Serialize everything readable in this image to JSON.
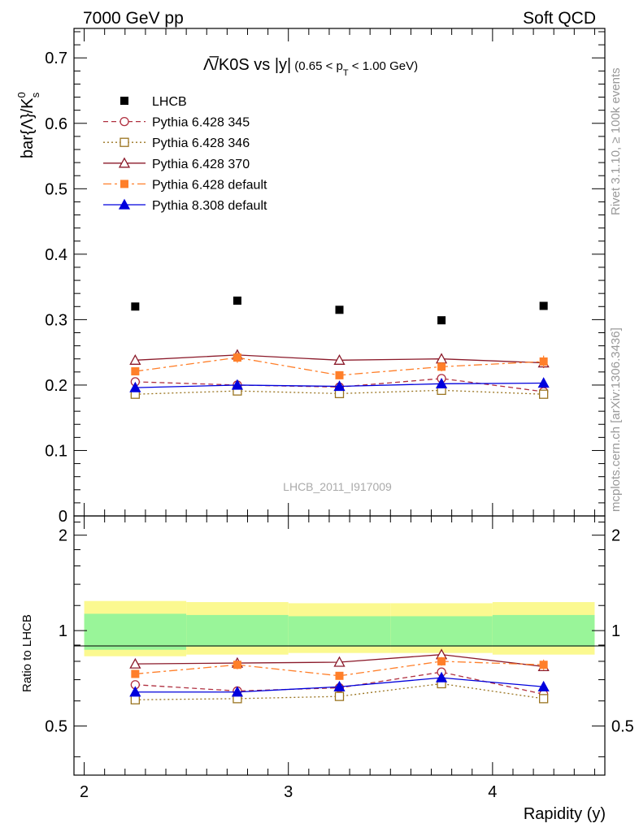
{
  "header": {
    "left": "7000 GeV pp",
    "right": "Soft QCD"
  },
  "side_labels": {
    "rivet": "Rivet 3.1.10, ≥ 100k events",
    "mcplots": "mcplots.cern.ch [arXiv:1306.3436]"
  },
  "watermark": "LHCB_2011_I917009",
  "title": {
    "main": "Λ̅/K0S vs |y|",
    "sub_pre": "(0.65 < p",
    "sub_T": "T",
    "sub_post": " < 1.00 GeV)"
  },
  "ylabel_main": {
    "pre": "bar{Λ}/K",
    "sup": "0",
    "sub": "s"
  },
  "ylabel_ratio": "Ratio to LHCB",
  "xlabel": "Rapidity (y)",
  "colors": {
    "data": "#000000",
    "p345": "#b03040",
    "p346": "#9a7420",
    "p370": "#8b1a2a",
    "p6def": "#ff7f2a",
    "p8def": "#0000dd",
    "band_inner": "#99f599",
    "band_outer": "#fbf990"
  },
  "chart_data": [
    {
      "type": "scatter",
      "panel": "main",
      "x": [
        2.25,
        2.75,
        3.25,
        3.75,
        4.25
      ],
      "xlim": [
        1.95,
        4.55
      ],
      "ylim": [
        0,
        0.745
      ],
      "xticks": [
        2,
        3,
        4
      ],
      "yticks": [
        0,
        0.1,
        0.2,
        0.3,
        0.4,
        0.5,
        0.6,
        0.7
      ],
      "ytick_labels": [
        "0",
        "0.1",
        "0.2",
        "0.3",
        "0.4",
        "0.5",
        "0.6",
        "0.7"
      ],
      "legend_position": "top-left",
      "series": [
        {
          "key": "data",
          "name": "LHCB",
          "values": [
            0.32,
            0.329,
            0.315,
            0.299,
            0.321
          ],
          "err": [
            0.003,
            0.003,
            0.003,
            0.003,
            0.003
          ]
        },
        {
          "key": "p345",
          "name": "Pythia 6.428 345",
          "values": [
            0.205,
            0.2,
            0.197,
            0.21,
            0.19
          ],
          "err": [
            0.004,
            0.005,
            0.004,
            0.005,
            0.006
          ]
        },
        {
          "key": "p346",
          "name": "Pythia 6.428 346",
          "values": [
            0.186,
            0.191,
            0.187,
            0.192,
            0.186
          ],
          "err": [
            0.004,
            0.004,
            0.004,
            0.004,
            0.005
          ]
        },
        {
          "key": "p370",
          "name": "Pythia 6.428 370",
          "values": [
            0.238,
            0.246,
            0.238,
            0.24,
            0.234
          ],
          "err": [
            0.006,
            0.007,
            0.006,
            0.007,
            0.008
          ]
        },
        {
          "key": "p6def",
          "name": "Pythia 6.428 default",
          "values": [
            0.221,
            0.242,
            0.215,
            0.228,
            0.236
          ],
          "err": [
            0.006,
            0.008,
            0.006,
            0.007,
            0.009
          ]
        },
        {
          "key": "p8def",
          "name": "Pythia 8.308 default",
          "values": [
            0.196,
            0.2,
            0.198,
            0.202,
            0.203
          ],
          "err": [
            0.004,
            0.004,
            0.004,
            0.005,
            0.006
          ]
        }
      ]
    },
    {
      "type": "line",
      "panel": "ratio",
      "x": [
        2.25,
        2.75,
        3.25,
        3.75,
        4.25
      ],
      "xlim": [
        1.95,
        4.55
      ],
      "ylim": [
        0.35,
        2.3
      ],
      "xticks": [
        2,
        3,
        4
      ],
      "yticks": [
        0.5,
        1,
        2
      ],
      "ytick_labels": [
        "0.5",
        "1",
        "2"
      ],
      "xtick_labels": [
        "2",
        "3",
        "4"
      ],
      "bands": {
        "edges": [
          2.0,
          2.5,
          3.0,
          3.5,
          4.0,
          4.5
        ],
        "inner": [
          [
            0.87,
            1.13
          ],
          [
            0.89,
            1.12
          ],
          [
            0.89,
            1.11
          ],
          [
            0.89,
            1.11
          ],
          [
            0.89,
            1.12
          ]
        ],
        "outer": [
          [
            0.83,
            1.24
          ],
          [
            0.84,
            1.23
          ],
          [
            0.85,
            1.22
          ],
          [
            0.85,
            1.22
          ],
          [
            0.84,
            1.23
          ]
        ]
      },
      "series": [
        {
          "key": "p345",
          "name": "Pythia 6.428 345",
          "values": [
            0.675,
            0.645,
            0.66,
            0.74,
            0.63
          ],
          "err": [
            0.015,
            0.015,
            0.015,
            0.02,
            0.02
          ]
        },
        {
          "key": "p346",
          "name": "Pythia 6.428 346",
          "values": [
            0.605,
            0.61,
            0.62,
            0.68,
            0.61
          ],
          "err": [
            0.015,
            0.015,
            0.015,
            0.02,
            0.02
          ]
        },
        {
          "key": "p370",
          "name": "Pythia 6.428 370",
          "values": [
            0.785,
            0.79,
            0.795,
            0.84,
            0.77
          ],
          "err": [
            0.02,
            0.02,
            0.02,
            0.025,
            0.025
          ]
        },
        {
          "key": "p6def",
          "name": "Pythia 6.428 default",
          "values": [
            0.73,
            0.78,
            0.72,
            0.8,
            0.78
          ],
          "err": [
            0.02,
            0.025,
            0.02,
            0.025,
            0.03
          ]
        },
        {
          "key": "p8def",
          "name": "Pythia 8.308 default",
          "values": [
            0.64,
            0.64,
            0.665,
            0.71,
            0.665
          ],
          "err": [
            0.015,
            0.015,
            0.015,
            0.02,
            0.02
          ]
        }
      ]
    }
  ]
}
